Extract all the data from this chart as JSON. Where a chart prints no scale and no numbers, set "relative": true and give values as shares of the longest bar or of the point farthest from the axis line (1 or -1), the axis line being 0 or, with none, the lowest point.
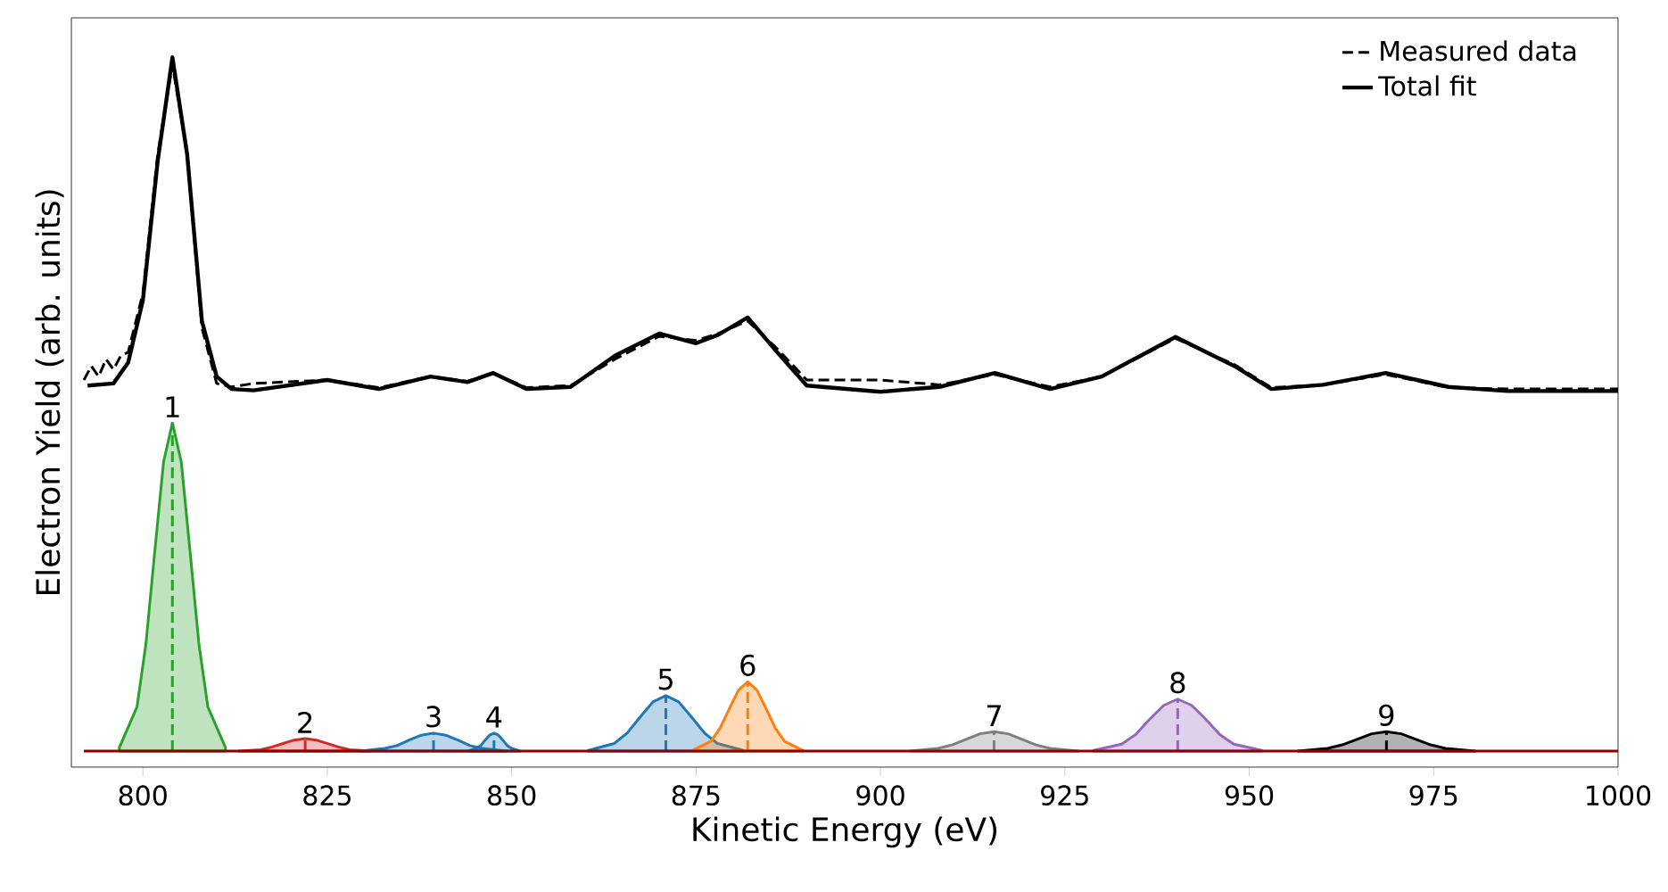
{
  "chart_data": {
    "type": "line",
    "relative": true,
    "xlabel": "Kinetic Energy (eV)",
    "ylabel": "Electron Yield (arb. units)",
    "xlim": [
      790.3,
      1000
    ],
    "xticks": [
      800,
      825,
      850,
      875,
      900,
      925,
      950,
      975,
      1000
    ],
    "legend": "top right",
    "series": [
      {
        "type": "area",
        "color": "#2ca02c",
        "x": [
          796.8,
          799.2,
          800.4,
          801.6,
          802.8,
          804,
          805.2,
          806.4,
          807.6,
          808.8,
          811.2
        ],
        "values": [
          0.005,
          0.064,
          0.154,
          0.287,
          0.417,
          0.473,
          0.417,
          0.287,
          0.154,
          0.064,
          0.005
        ]
      },
      {
        "type": "area",
        "color": "#d62728",
        "x": [
          813,
          816,
          817.5,
          819,
          820.5,
          822,
          823.5,
          825,
          826.5,
          828,
          831
        ],
        "values": [
          0,
          0.002,
          0.006,
          0.011,
          0.016,
          0.018,
          0.016,
          0.011,
          0.006,
          0.002,
          0
        ]
      },
      {
        "type": "area",
        "color": "#1f77b4",
        "x": [
          829.5,
          832.8,
          834.45,
          836.1,
          837.75,
          839.4,
          841.05,
          842.7,
          844.35,
          846,
          849.3
        ],
        "values": [
          0,
          0.004,
          0.008,
          0.016,
          0.023,
          0.026,
          0.023,
          0.016,
          0.008,
          0.004,
          0
        ]
      },
      {
        "type": "area",
        "color": "#1f77b4",
        "x": [
          844,
          845.2,
          845.8,
          846.4,
          847,
          847.6,
          848.2,
          848.8,
          849.4,
          850,
          851.2
        ],
        "values": [
          0,
          0.004,
          0.008,
          0.016,
          0.023,
          0.026,
          0.023,
          0.016,
          0.008,
          0.004,
          0
        ]
      },
      {
        "type": "area",
        "color": "#1f77b4",
        "x": [
          860.4,
          863.9,
          865.65,
          867.4,
          869.15,
          870.9,
          872.65,
          874.4,
          876.15,
          877.9,
          881.4
        ],
        "values": [
          0.001,
          0.011,
          0.026,
          0.049,
          0.071,
          0.08,
          0.071,
          0.049,
          0.026,
          0.011,
          0.001
        ]
      },
      {
        "type": "area",
        "color": "#ff7f0e",
        "x": [
          874.5,
          877,
          878.25,
          879.5,
          880.75,
          882,
          883.25,
          884.5,
          885.75,
          887,
          889.5
        ],
        "values": [
          0.001,
          0.014,
          0.033,
          0.061,
          0.088,
          0.1,
          0.088,
          0.061,
          0.033,
          0.014,
          0.001
        ]
      },
      {
        "type": "area",
        "color": "#7f7f7f",
        "x": [
          904,
          907.8,
          909.7,
          911.6,
          913.5,
          915.4,
          917.3,
          919.2,
          921.1,
          923,
          926.8
        ],
        "values": [
          0,
          0.004,
          0.009,
          0.017,
          0.025,
          0.028,
          0.025,
          0.017,
          0.009,
          0.004,
          0
        ]
      },
      {
        "type": "area",
        "color": "#9467bd",
        "x": [
          928.9,
          932.7,
          934.6,
          936.5,
          938.4,
          940.3,
          942.2,
          944.1,
          946,
          947.9,
          951.7
        ],
        "values": [
          0.001,
          0.01,
          0.024,
          0.046,
          0.066,
          0.075,
          0.066,
          0.046,
          0.024,
          0.01,
          0.001
        ]
      },
      {
        "type": "area",
        "color": "#000000",
        "x": [
          956.6,
          960.6,
          962.6,
          964.6,
          966.6,
          968.6,
          970.6,
          972.6,
          974.6,
          976.6,
          980.6
        ],
        "values": [
          0,
          0.004,
          0.009,
          0.017,
          0.025,
          0.028,
          0.025,
          0.017,
          0.009,
          0.004,
          0
        ]
      },
      {
        "line_style": "dashed",
        "color": "#2ca02c",
        "x": [
          804,
          804
        ],
        "values": [
          0,
          0.473
        ]
      },
      {
        "line_style": "dashed",
        "color": "#d62728",
        "x": [
          822,
          822
        ],
        "values": [
          0,
          0.018
        ]
      },
      {
        "line_style": "dashed",
        "color": "#1f77b4",
        "x": [
          839.4,
          839.4
        ],
        "values": [
          0,
          0.026
        ]
      },
      {
        "line_style": "dashed",
        "color": "#1f77b4",
        "x": [
          847.6,
          847.6
        ],
        "values": [
          0,
          0.026
        ]
      },
      {
        "line_style": "dashed",
        "color": "#1f77b4",
        "x": [
          870.9,
          870.9
        ],
        "values": [
          0,
          0.08
        ]
      },
      {
        "line_style": "dashed",
        "color": "#ff7f0e",
        "x": [
          882,
          882
        ],
        "values": [
          0,
          0.1
        ]
      },
      {
        "line_style": "dashed",
        "color": "#7f7f7f",
        "x": [
          915.4,
          915.4
        ],
        "values": [
          0,
          0.028
        ]
      },
      {
        "line_style": "dashed",
        "color": "#9467bd",
        "x": [
          940.3,
          940.3
        ],
        "values": [
          0,
          0.075
        ]
      },
      {
        "line_style": "dashed",
        "color": "#000000",
        "x": [
          968.6,
          968.6
        ],
        "values": [
          0,
          0.028
        ]
      },
      {
        "line_style": "solid",
        "color": "#8b0000",
        "x": [
          792,
          1000
        ],
        "values": [
          0,
          0
        ]
      },
      {
        "name": "Measured data",
        "line_style": "dashed",
        "color": "#000000",
        "x": [
          792,
          793,
          794,
          795,
          796,
          797,
          798,
          800,
          802,
          804,
          806,
          808,
          810,
          812,
          815,
          825,
          832,
          839,
          844,
          847.5,
          852,
          858,
          864,
          870,
          875,
          878,
          882,
          886,
          890,
          900,
          908,
          915.5,
          923,
          930,
          940,
          948,
          953,
          960,
          968.5,
          977,
          985,
          1000
        ],
        "values": [
          0.535,
          0.555,
          0.54,
          0.565,
          0.55,
          0.57,
          0.575,
          0.66,
          0.86,
          0.99,
          0.86,
          0.61,
          0.53,
          0.525,
          0.53,
          0.535,
          0.524,
          0.54,
          0.533,
          0.545,
          0.524,
          0.527,
          0.565,
          0.598,
          0.592,
          0.602,
          0.62,
          0.58,
          0.535,
          0.535,
          0.528,
          0.543,
          0.525,
          0.54,
          0.595,
          0.557,
          0.524,
          0.528,
          0.543,
          0.524,
          0.522,
          0.522
        ]
      },
      {
        "name": "Total fit",
        "line_style": "solid",
        "color": "#000000",
        "x": [
          792.5,
          796,
          798,
          800,
          802,
          804,
          806,
          808,
          810,
          812,
          815,
          825,
          832,
          839,
          844,
          847.5,
          852,
          858,
          864,
          870,
          875,
          878,
          882,
          886,
          890,
          900,
          908,
          915.5,
          923,
          930,
          940,
          948,
          953,
          960,
          968.5,
          977,
          985,
          1000
        ],
        "values": [
          0.527,
          0.53,
          0.56,
          0.65,
          0.85,
          1.0,
          0.86,
          0.62,
          0.54,
          0.522,
          0.52,
          0.535,
          0.522,
          0.54,
          0.532,
          0.545,
          0.522,
          0.525,
          0.57,
          0.602,
          0.588,
          0.6,
          0.625,
          0.575,
          0.527,
          0.518,
          0.525,
          0.545,
          0.522,
          0.54,
          0.597,
          0.555,
          0.522,
          0.528,
          0.545,
          0.525,
          0.519,
          0.519
        ]
      }
    ],
    "annotations": [
      {
        "text": "1",
        "x": 804,
        "y": 0.473
      },
      {
        "text": "2",
        "x": 822,
        "y": 0.018
      },
      {
        "text": "3",
        "x": 839.4,
        "y": 0.026
      },
      {
        "text": "4",
        "x": 847.6,
        "y": 0.026
      },
      {
        "text": "5",
        "x": 870.9,
        "y": 0.08
      },
      {
        "text": "6",
        "x": 882,
        "y": 0.1
      },
      {
        "text": "7",
        "x": 915.4,
        "y": 0.028
      },
      {
        "text": "8",
        "x": 940.3,
        "y": 0.075
      },
      {
        "text": "9",
        "x": 968.6,
        "y": 0.028
      }
    ]
  }
}
